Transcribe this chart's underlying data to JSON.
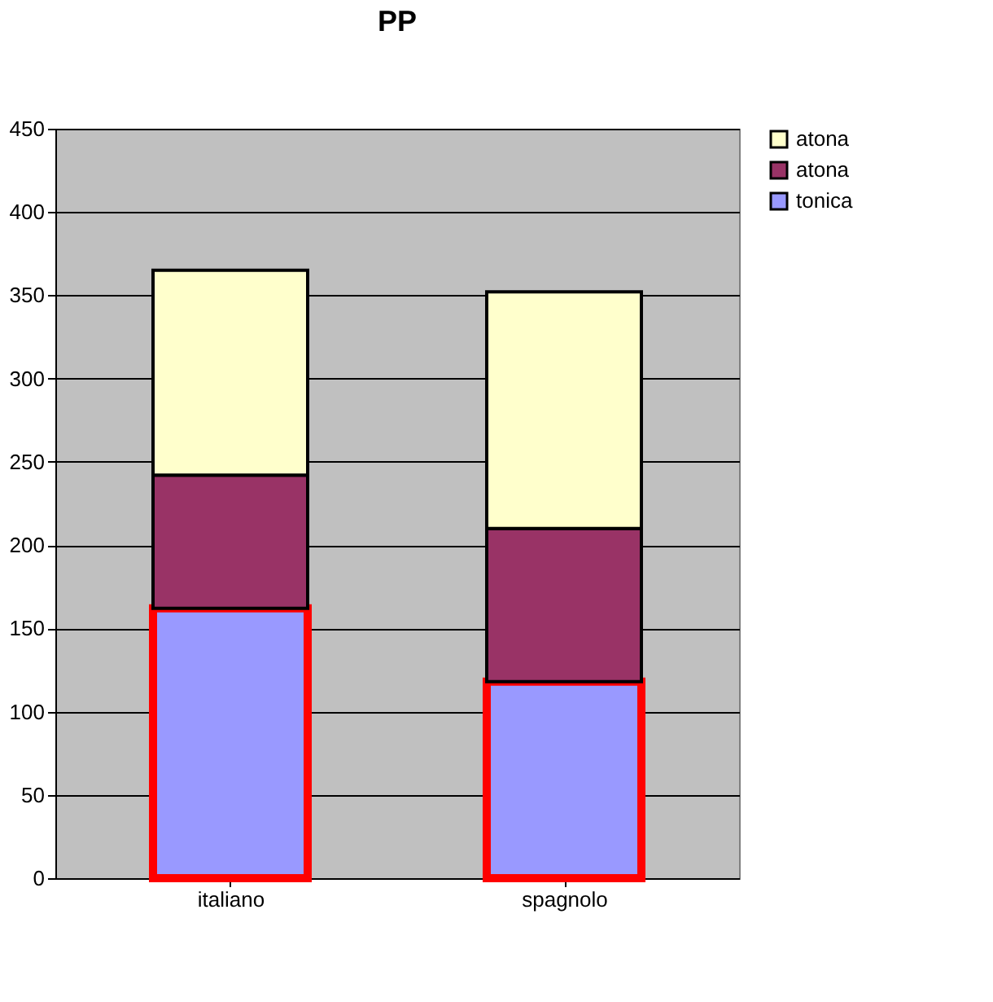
{
  "chart_data": {
    "type": "bar",
    "title": "PP",
    "stacked": true,
    "categories": [
      "italiano",
      "spagnolo"
    ],
    "series": [
      {
        "name": "tonica",
        "color": "#9999ff",
        "values": [
          162,
          118
        ]
      },
      {
        "name": "atona",
        "color": "#993366",
        "values": [
          80,
          92
        ]
      },
      {
        "name": "atona",
        "color": "#ffffcc",
        "values": [
          123,
          142
        ]
      }
    ],
    "ylim": [
      0,
      450
    ],
    "yticks": [
      0,
      50,
      100,
      150,
      200,
      250,
      300,
      350,
      400,
      450
    ],
    "grid": "y",
    "legend": "right"
  }
}
